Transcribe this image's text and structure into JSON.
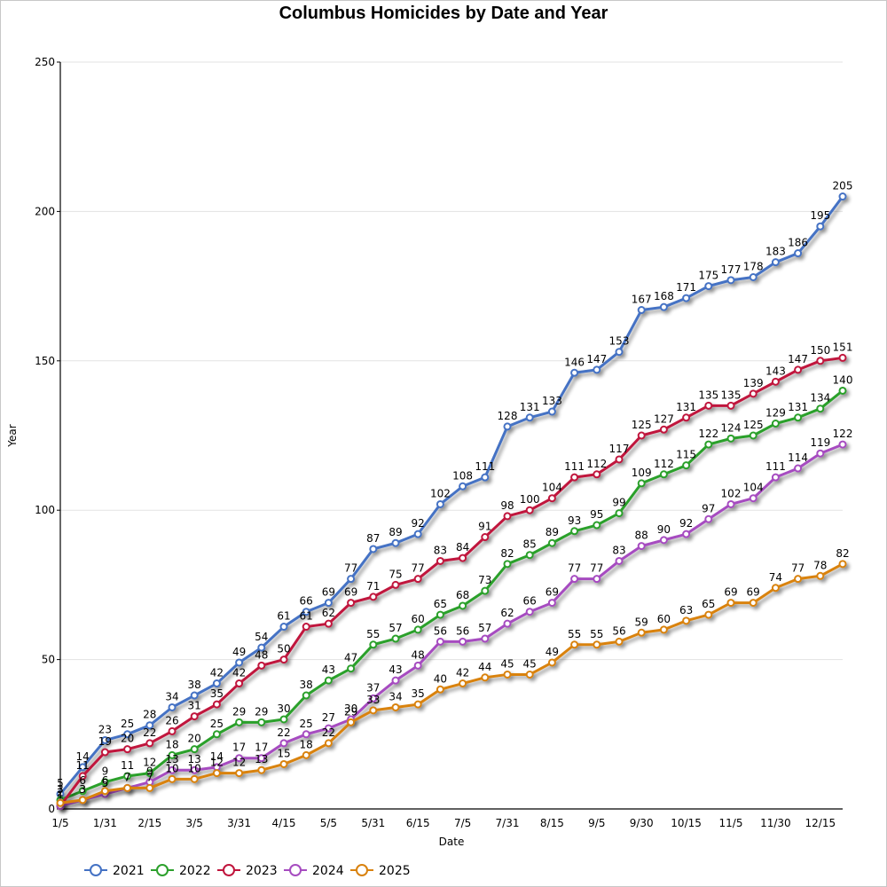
{
  "chart_data": {
    "type": "line",
    "title": "Columbus Homicides by Date and Year",
    "xlabel": "Date",
    "ylabel": "Year",
    "ylim": [
      0,
      250
    ],
    "yticks": [
      0,
      50,
      100,
      150,
      200,
      250
    ],
    "grid": true,
    "legend": "bottom-left",
    "categories": [
      "1/5",
      "",
      "1/31",
      "",
      "2/15",
      "",
      "3/5",
      "",
      "3/31",
      "",
      "4/15",
      "",
      "5/5",
      "",
      "5/31",
      "",
      "6/15",
      "",
      "7/5",
      "",
      "7/31",
      "",
      "8/15",
      "",
      "9/5",
      "",
      "9/30",
      "",
      "10/15",
      "",
      "11/5",
      "",
      "11/30",
      "",
      "12/15",
      ""
    ],
    "series": [
      {
        "name": "2021",
        "color": "#4472c4",
        "values": [
          5,
          14,
          23,
          25,
          28,
          34,
          38,
          42,
          49,
          54,
          61,
          66,
          69,
          77,
          87,
          89,
          92,
          102,
          108,
          111,
          128,
          131,
          133,
          146,
          147,
          153,
          167,
          168,
          171,
          175,
          177,
          178,
          183,
          186,
          195,
          205
        ]
      },
      {
        "name": "2022",
        "color": "#2ca02c",
        "values": [
          3,
          6,
          9,
          11,
          12,
          18,
          20,
          25,
          29,
          29,
          30,
          38,
          43,
          47,
          55,
          57,
          60,
          65,
          68,
          73,
          82,
          85,
          89,
          93,
          95,
          99,
          109,
          112,
          115,
          122,
          124,
          125,
          129,
          131,
          134,
          140
        ]
      },
      {
        "name": "2023",
        "color": "#c0143c",
        "values": [
          1,
          11,
          19,
          20,
          22,
          26,
          31,
          35,
          42,
          48,
          50,
          61,
          62,
          69,
          71,
          75,
          77,
          83,
          84,
          91,
          98,
          100,
          104,
          111,
          112,
          117,
          125,
          127,
          131,
          135,
          135,
          139,
          143,
          147,
          150,
          151
        ]
      },
      {
        "name": "2024",
        "color": "#a64cc0",
        "values": [
          1,
          3,
          5,
          7,
          9,
          13,
          13,
          14,
          17,
          17,
          22,
          25,
          27,
          30,
          37,
          43,
          48,
          56,
          56,
          57,
          62,
          66,
          69,
          77,
          77,
          83,
          88,
          90,
          92,
          97,
          102,
          104,
          111,
          114,
          119,
          122
        ]
      },
      {
        "name": "2025",
        "color": "#d9820f",
        "values": [
          2,
          3,
          6,
          7,
          7,
          10,
          10,
          12,
          12,
          13,
          15,
          18,
          22,
          29,
          33,
          34,
          35,
          40,
          42,
          44,
          45,
          45,
          49,
          55,
          55,
          56,
          59,
          60,
          63,
          65,
          69,
          69,
          74,
          77,
          78,
          82
        ]
      }
    ]
  }
}
